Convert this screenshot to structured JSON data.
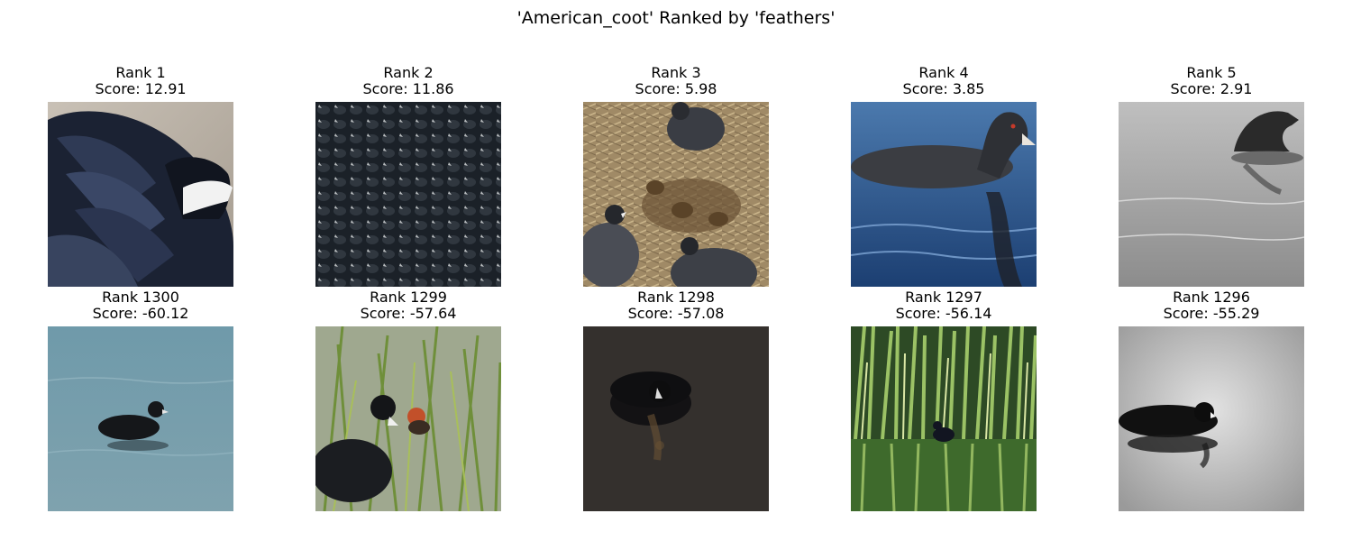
{
  "figure": {
    "title": "'American_coot' Ranked by 'feathers'"
  },
  "panels": [
    {
      "rank": "Rank 1",
      "score": "Score: 12.91",
      "scene": "coot-closeup-feathers-icon"
    },
    {
      "rank": "Rank 2",
      "score": "Score: 11.86",
      "scene": "coot-flock-icon"
    },
    {
      "rank": "Rank 3",
      "score": "Score: 5.98",
      "scene": "coots-on-nest-icon"
    },
    {
      "rank": "Rank 4",
      "score": "Score: 3.85",
      "scene": "coot-swimming-blue-icon"
    },
    {
      "rank": "Rank 5",
      "score": "Score: 2.91",
      "scene": "coot-diving-grey-icon"
    },
    {
      "rank": "Rank 1300",
      "score": "Score: -60.12",
      "scene": "coot-distant-water-icon"
    },
    {
      "rank": "Rank 1299",
      "score": "Score: -57.64",
      "scene": "coot-with-chick-reeds-icon"
    },
    {
      "rank": "Rank 1298",
      "score": "Score: -57.08",
      "scene": "coot-dark-water-icon"
    },
    {
      "rank": "Rank 1297",
      "score": "Score: -56.14",
      "scene": "coot-by-reeds-icon"
    },
    {
      "rank": "Rank 1296",
      "score": "Score: -55.29",
      "scene": "coot-monochrome-icon"
    }
  ]
}
